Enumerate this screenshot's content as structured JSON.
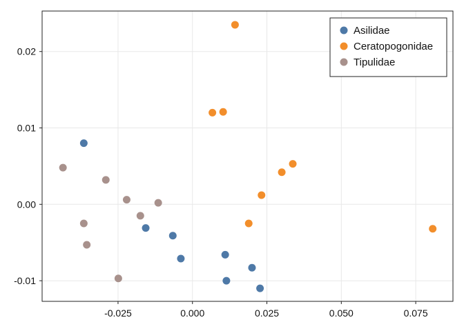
{
  "chart_data": {
    "type": "scatter",
    "title": "",
    "xlabel": "",
    "ylabel": "",
    "xlim": [
      -0.0505,
      0.0875
    ],
    "ylim": [
      -0.0127,
      0.0253
    ],
    "x_ticks": [
      -0.025,
      0.0,
      0.025,
      0.05,
      0.075
    ],
    "x_tick_labels": [
      "-0.025",
      "0.000",
      "0.025",
      "0.050",
      "0.075"
    ],
    "y_ticks": [
      -0.01,
      0.0,
      0.01,
      0.02
    ],
    "y_tick_labels": [
      "-0.01",
      "0.00",
      "0.01",
      "0.02"
    ],
    "grid": true,
    "legend_position": "top-right",
    "series": [
      {
        "name": "Asilidae",
        "color": "#4e79a7",
        "points": [
          [
            -0.0365,
            0.008
          ],
          [
            -0.0157,
            -0.0031
          ],
          [
            -0.0066,
            -0.0041
          ],
          [
            -0.0039,
            -0.0071
          ],
          [
            0.011,
            -0.0066
          ],
          [
            0.0114,
            -0.01
          ],
          [
            0.02,
            -0.0083
          ],
          [
            0.0227,
            -0.011
          ]
        ]
      },
      {
        "name": "Ceratopogonidae",
        "color": "#f28e2b",
        "points": [
          [
            0.0143,
            0.0235
          ],
          [
            0.0067,
            0.012
          ],
          [
            0.0103,
            0.0121
          ],
          [
            0.0337,
            0.0053
          ],
          [
            0.03,
            0.0042
          ],
          [
            0.0232,
            0.0012
          ],
          [
            0.0189,
            -0.0025
          ],
          [
            0.0807,
            -0.0032
          ]
        ]
      },
      {
        "name": "Tipulidae",
        "color": "#a8918c",
        "points": [
          [
            -0.0435,
            0.0048
          ],
          [
            -0.0291,
            0.0032
          ],
          [
            -0.0221,
            0.0006
          ],
          [
            -0.0115,
            0.0002
          ],
          [
            -0.0175,
            -0.0015
          ],
          [
            -0.0365,
            -0.0025
          ],
          [
            -0.0355,
            -0.0053
          ],
          [
            -0.0249,
            -0.0097
          ]
        ]
      }
    ]
  }
}
